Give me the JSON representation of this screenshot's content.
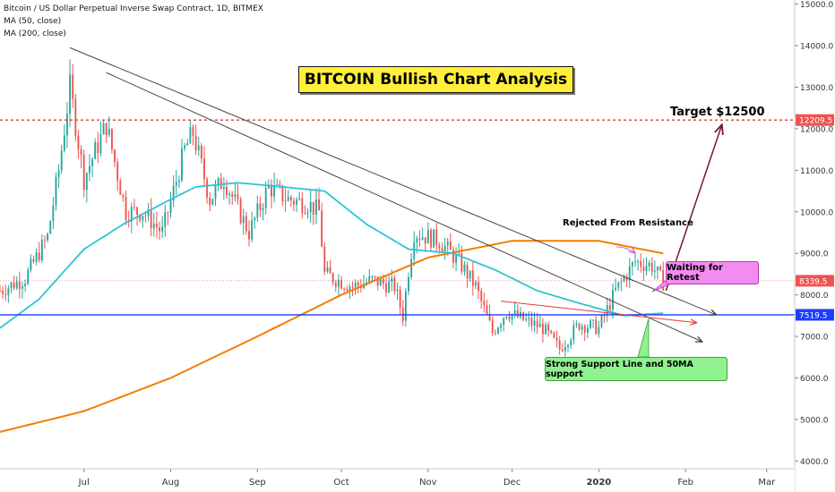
{
  "header": {
    "symbol_line": "Bitcoin / US Dollar Perpetual Inverse Swap Contract, 1D, BITMEX",
    "ma50_line": "MA (50, close)",
    "ma200_line": "MA (200, close)"
  },
  "annotations": {
    "title": "BITCOIN Bullish Chart Analysis",
    "target": "Target $12500",
    "rejected": "Rejected From Resistance",
    "retest": "Waiting for Retest",
    "support": "Strong Support Line and 50MA support"
  },
  "colors": {
    "up_candle": "#26a69a",
    "down_candle": "#ef5350",
    "ma50": "#2ec4d6",
    "ma200": "#f57c00",
    "resistance_line": "#e53935",
    "support_line": "#1e3cff",
    "price_badge": "#ef5350",
    "support_badge": "#1e3cff",
    "target_arrow": "#7a1638"
  },
  "chart_data": {
    "type": "candlestick",
    "ylim": [
      3900,
      15100
    ],
    "y_ticks": [
      "4000.0",
      "5000.0",
      "6000.0",
      "7000.0",
      "8000.0",
      "9000.0",
      "10000.0",
      "11000.0",
      "12000.0",
      "13000.0",
      "14000.0",
      "15000.0"
    ],
    "x_ticks": [
      "Jul",
      "Aug",
      "Sep",
      "Oct",
      "Nov",
      "Dec",
      "2020",
      "Feb",
      "Mar"
    ],
    "x_tick_dates": [
      "2019-07-01",
      "2019-08-01",
      "2019-09-01",
      "2019-10-01",
      "2019-11-01",
      "2019-12-01",
      "2020-01-01",
      "2020-02-01",
      "2020-03-01"
    ],
    "x_range": [
      "2019-06-01",
      "2020-03-11"
    ],
    "price_badges": [
      {
        "value": 12209.5,
        "label": "12209.5"
      },
      {
        "value": 8339.5,
        "label": "8339.5"
      },
      {
        "value": 7519.5,
        "label": "7519.5"
      }
    ],
    "resistance_level": 12209.5,
    "support_level": 7519.5,
    "current_level": 8339.5,
    "candle_keypoints": [
      [
        "2019-06-01",
        8100
      ],
      [
        "2019-06-10",
        8400
      ],
      [
        "2019-06-18",
        9400
      ],
      [
        "2019-06-22",
        11000
      ],
      [
        "2019-06-26",
        13000
      ],
      [
        "2019-07-01",
        10800
      ],
      [
        "2019-07-09",
        12100
      ],
      [
        "2019-07-16",
        10000
      ],
      [
        "2019-07-22",
        10000
      ],
      [
        "2019-07-29",
        9500
      ],
      [
        "2019-08-06",
        11500
      ],
      [
        "2019-08-09",
        11900
      ],
      [
        "2019-08-15",
        10300
      ],
      [
        "2019-08-20",
        10800
      ],
      [
        "2019-08-29",
        9500
      ],
      [
        "2019-09-05",
        10600
      ],
      [
        "2019-09-12",
        10300
      ],
      [
        "2019-09-19",
        10200
      ],
      [
        "2019-09-23",
        10000
      ],
      [
        "2019-09-25",
        8500
      ],
      [
        "2019-10-05",
        8200
      ],
      [
        "2019-10-12",
        8350
      ],
      [
        "2019-10-20",
        8200
      ],
      [
        "2019-10-23",
        7500
      ],
      [
        "2019-10-25",
        8600
      ],
      [
        "2019-10-27",
        9500
      ],
      [
        "2019-11-05",
        9300
      ],
      [
        "2019-11-12",
        8800
      ],
      [
        "2019-11-18",
        8200
      ],
      [
        "2019-11-24",
        7100
      ],
      [
        "2019-11-29",
        7600
      ],
      [
        "2019-12-05",
        7400
      ],
      [
        "2019-12-12",
        7200
      ],
      [
        "2019-12-18",
        6700
      ],
      [
        "2019-12-25",
        7300
      ],
      [
        "2020-01-01",
        7200
      ],
      [
        "2020-01-07",
        8100
      ],
      [
        "2020-01-14",
        8800
      ],
      [
        "2020-01-20",
        8700
      ],
      [
        "2020-01-24",
        8300
      ]
    ],
    "ma50_keypoints": [
      [
        "2019-06-01",
        7200
      ],
      [
        "2019-06-15",
        7900
      ],
      [
        "2019-07-01",
        9100
      ],
      [
        "2019-07-15",
        9700
      ],
      [
        "2019-08-01",
        10300
      ],
      [
        "2019-08-10",
        10600
      ],
      [
        "2019-08-25",
        10700
      ],
      [
        "2019-09-10",
        10600
      ],
      [
        "2019-09-25",
        10500
      ],
      [
        "2019-10-10",
        9700
      ],
      [
        "2019-10-25",
        9100
      ],
      [
        "2019-11-10",
        9000
      ],
      [
        "2019-11-25",
        8600
      ],
      [
        "2019-12-10",
        8100
      ],
      [
        "2019-12-25",
        7800
      ],
      [
        "2020-01-10",
        7500
      ],
      [
        "2020-01-24",
        7560
      ]
    ],
    "ma200_keypoints": [
      [
        "2019-06-01",
        4700
      ],
      [
        "2019-07-01",
        5200
      ],
      [
        "2019-08-01",
        6000
      ],
      [
        "2019-09-01",
        7000
      ],
      [
        "2019-10-01",
        8000
      ],
      [
        "2019-11-01",
        8900
      ],
      [
        "2019-12-01",
        9300
      ],
      [
        "2020-01-01",
        9300
      ],
      [
        "2020-01-24",
        9000
      ]
    ],
    "trendlines": [
      {
        "name": "upper",
        "from": [
          "2019-06-26",
          13950
        ],
        "to": [
          "2020-02-12",
          7520
        ],
        "color": "#444444"
      },
      {
        "name": "lower",
        "from": [
          "2019-07-09",
          13350
        ],
        "to": [
          "2020-02-07",
          6870
        ],
        "color": "#444444"
      },
      {
        "name": "red-resistance",
        "from": [
          "2019-11-27",
          7850
        ],
        "to": [
          "2020-02-05",
          7330
        ],
        "color": "#e53935"
      }
    ],
    "target_arrow": {
      "from": [
        "2020-01-25",
        8100
      ],
      "to": [
        "2020-02-14",
        12100
      ]
    }
  }
}
